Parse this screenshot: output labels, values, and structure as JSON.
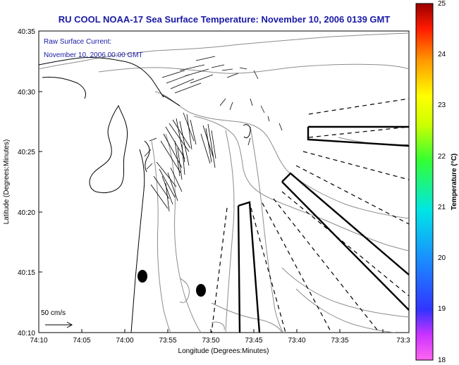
{
  "title": "RU COOL  NOAA-17  Sea Surface Temperature:  November 10, 2006 0139 GMT",
  "inset": {
    "line1": "Raw Surface Current:",
    "line2": "November 10, 2006 00:00 GMT"
  },
  "scale_label": "50 cm/s",
  "x_axis": {
    "label": "Longitude (Degrees:Minutes)",
    "ticks": [
      "74:10",
      "74:05",
      "74:00",
      "73:55",
      "73:50",
      "73:45",
      "73:40",
      "73:35",
      "73:3"
    ]
  },
  "y_axis": {
    "label": "Latitude (Degrees:Minutes)",
    "ticks": [
      "40:35",
      "40:30",
      "40:25",
      "40:20",
      "40:15",
      "40:10"
    ]
  },
  "colorbar": {
    "label": "Temperature (°C)",
    "ticks": [
      "25",
      "24",
      "23",
      "22",
      "21",
      "20",
      "19",
      "18"
    ],
    "range": [
      18,
      25
    ]
  },
  "colors": {
    "title": "#1a1aa6",
    "coast": "#000000",
    "contour": "#8c8c8c"
  }
}
